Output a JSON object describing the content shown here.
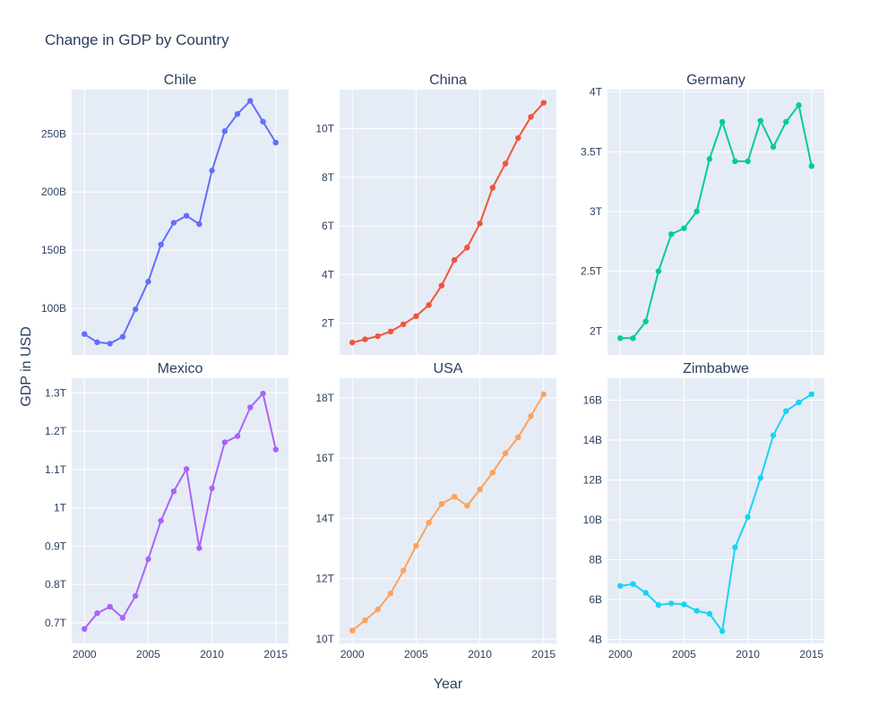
{
  "title": "Change in GDP by Country",
  "xlabel": "Year",
  "ylabel": "GDP in USD",
  "chart_data": [
    {
      "type": "line",
      "title": "Chile",
      "color": "#636efa",
      "x": [
        2000,
        2001,
        2002,
        2003,
        2004,
        2005,
        2006,
        2007,
        2008,
        2009,
        2010,
        2011,
        2012,
        2013,
        2014,
        2015
      ],
      "values": [
        77.9,
        70.9,
        69.7,
        75.6,
        99.2,
        123.0,
        154.8,
        173.6,
        179.6,
        172.4,
        218.5,
        252.3,
        267.1,
        278.4,
        260.5,
        242.5
      ],
      "unit": "B",
      "yticks": [
        100,
        150,
        200,
        250
      ],
      "ytick_labels": [
        "100B",
        "150B",
        "200B",
        "250B"
      ],
      "ylim": [
        60,
        288
      ],
      "xticks": [
        2000,
        2005,
        2010,
        2015
      ],
      "xtick_labels": [],
      "xlim": [
        1999,
        2016
      ]
    },
    {
      "type": "line",
      "title": "China",
      "color": "#ef553b",
      "x": [
        2000,
        2001,
        2002,
        2003,
        2004,
        2005,
        2006,
        2007,
        2008,
        2009,
        2010,
        2011,
        2012,
        2013,
        2014,
        2015
      ],
      "values": [
        1.21,
        1.34,
        1.47,
        1.66,
        1.96,
        2.29,
        2.75,
        3.55,
        4.6,
        5.11,
        6.1,
        7.57,
        8.56,
        9.61,
        10.48,
        11.06
      ],
      "unit": "T",
      "yticks": [
        2,
        4,
        6,
        8,
        10
      ],
      "ytick_labels": [
        "2T",
        "4T",
        "6T",
        "8T",
        "10T"
      ],
      "ylim": [
        0.7,
        11.6
      ],
      "xticks": [
        2000,
        2005,
        2010,
        2015
      ],
      "xtick_labels": [],
      "xlim": [
        1999,
        2016
      ]
    },
    {
      "type": "line",
      "title": "Germany",
      "color": "#00cc96",
      "x": [
        2000,
        2001,
        2002,
        2003,
        2004,
        2005,
        2006,
        2007,
        2008,
        2009,
        2010,
        2011,
        2012,
        2013,
        2014,
        2015
      ],
      "values": [
        1.94,
        1.94,
        2.08,
        2.5,
        2.81,
        2.86,
        3.0,
        3.44,
        3.75,
        3.42,
        3.42,
        3.76,
        3.54,
        3.75,
        3.89,
        3.38
      ],
      "unit": "T",
      "yticks": [
        2,
        2.5,
        3,
        3.5,
        4
      ],
      "ytick_labels": [
        "2T",
        "2.5T",
        "3T",
        "3.5T",
        "4T"
      ],
      "ylim": [
        1.8,
        4.02
      ],
      "xticks": [
        2000,
        2005,
        2010,
        2015
      ],
      "xtick_labels": [],
      "xlim": [
        1999,
        2016
      ]
    },
    {
      "type": "line",
      "title": "Mexico",
      "color": "#ab63fa",
      "x": [
        2000,
        2001,
        2002,
        2003,
        2004,
        2005,
        2006,
        2007,
        2008,
        2009,
        2010,
        2011,
        2012,
        2013,
        2014,
        2015
      ],
      "values": [
        0.684,
        0.725,
        0.742,
        0.713,
        0.77,
        0.866,
        0.966,
        1.043,
        1.101,
        0.895,
        1.051,
        1.171,
        1.187,
        1.262,
        1.298,
        1.152
      ],
      "unit": "T",
      "yticks": [
        0.7,
        0.8,
        0.9,
        1.0,
        1.1,
        1.2,
        1.3
      ],
      "ytick_labels": [
        "0.7T",
        "0.8T",
        "0.9T",
        "1T",
        "1.1T",
        "1.2T",
        "1.3T"
      ],
      "ylim": [
        0.646,
        1.338
      ],
      "xticks": [
        2000,
        2005,
        2010,
        2015
      ],
      "xtick_labels": [
        "2000",
        "2005",
        "2010",
        "2015"
      ],
      "xlim": [
        1999,
        2016
      ]
    },
    {
      "type": "line",
      "title": "USA",
      "color": "#ffa15a",
      "x": [
        2000,
        2001,
        2002,
        2003,
        2004,
        2005,
        2006,
        2007,
        2008,
        2009,
        2010,
        2011,
        2012,
        2013,
        2014,
        2015
      ],
      "values": [
        10.28,
        10.62,
        10.98,
        11.51,
        12.27,
        13.09,
        13.86,
        14.48,
        14.72,
        14.42,
        14.96,
        15.52,
        16.16,
        16.69,
        17.39,
        18.12
      ],
      "unit": "T",
      "yticks": [
        10,
        12,
        14,
        16,
        18
      ],
      "ytick_labels": [
        "10T",
        "12T",
        "14T",
        "16T",
        "18T"
      ],
      "ylim": [
        9.85,
        18.65
      ],
      "xticks": [
        2000,
        2005,
        2010,
        2015
      ],
      "xtick_labels": [
        "2000",
        "2005",
        "2010",
        "2015"
      ],
      "xlim": [
        1999,
        2016
      ]
    },
    {
      "type": "line",
      "title": "Zimbabwe",
      "color": "#19d3f3",
      "x": [
        2000,
        2001,
        2002,
        2003,
        2004,
        2005,
        2006,
        2007,
        2008,
        2009,
        2010,
        2011,
        2012,
        2013,
        2014,
        2015
      ],
      "values": [
        6.69,
        6.78,
        6.34,
        5.73,
        5.81,
        5.76,
        5.44,
        5.29,
        4.42,
        8.62,
        10.14,
        12.1,
        14.24,
        15.45,
        15.89,
        16.3
      ],
      "unit": "B",
      "yticks": [
        4,
        6,
        8,
        10,
        12,
        14,
        16
      ],
      "ytick_labels": [
        "4B",
        "6B",
        "8B",
        "10B",
        "12B",
        "14B",
        "16B"
      ],
      "ylim": [
        3.8,
        17.1
      ],
      "xticks": [
        2000,
        2005,
        2010,
        2015
      ],
      "xtick_labels": [
        "2000",
        "2005",
        "2010",
        "2015"
      ],
      "xlim": [
        1999,
        2016
      ]
    }
  ]
}
